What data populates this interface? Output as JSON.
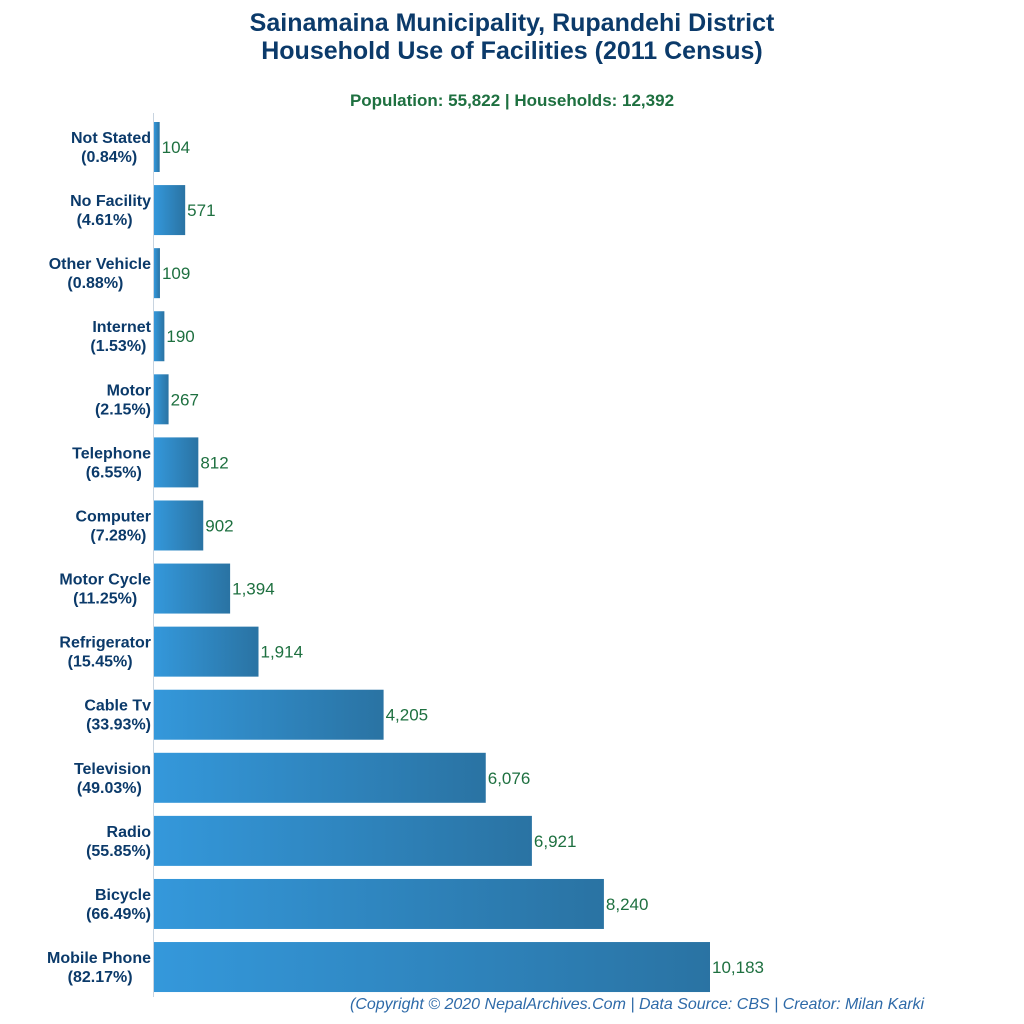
{
  "chart_data": {
    "type": "bar",
    "orientation": "horizontal",
    "title": "Sainamaina Municipality, Rupandehi District",
    "title_line2": "Household Use of Facilities (2011 Census)",
    "subtitle": "Population: 55,822 | Households: 12,392",
    "categories": [
      "Not Stated",
      "No Facility",
      "Other Vehicle",
      "Internet",
      "Motor",
      "Telephone",
      "Computer",
      "Motor Cycle",
      "Refrigerator",
      "Cable Tv",
      "Television",
      "Radio",
      "Bicycle",
      "Mobile Phone"
    ],
    "percent_labels": [
      "(0.84%)",
      "(4.61%)",
      "(0.88%)",
      "(1.53%)",
      "(2.15%)",
      "(6.55%)",
      "(7.28%)",
      "(11.25%)",
      "(15.45%)",
      "(33.93%)",
      "(49.03%)",
      "(55.85%)",
      "(66.49%)",
      "(82.17%)"
    ],
    "values": [
      104,
      571,
      109,
      190,
      267,
      812,
      902,
      1394,
      1914,
      4205,
      6076,
      6921,
      8240,
      10183
    ],
    "value_labels": [
      "104",
      "571",
      "109",
      "190",
      "267",
      "812",
      "902",
      "1,394",
      "1,914",
      "4,205",
      "6,076",
      "6,921",
      "8,240",
      "10,183"
    ],
    "xlim": [
      0,
      10183
    ],
    "grid": false,
    "legend": "none",
    "colors": {
      "bar_start": "#3498db",
      "bar_end": "#2a73a3",
      "title": "#0b3a6a",
      "value_label": "#1e7040",
      "footer": "#2e6aa8"
    },
    "footer": "(Copyright © 2020 NepalArchives.Com | Data Source: CBS | Creator: Milan Karki"
  }
}
